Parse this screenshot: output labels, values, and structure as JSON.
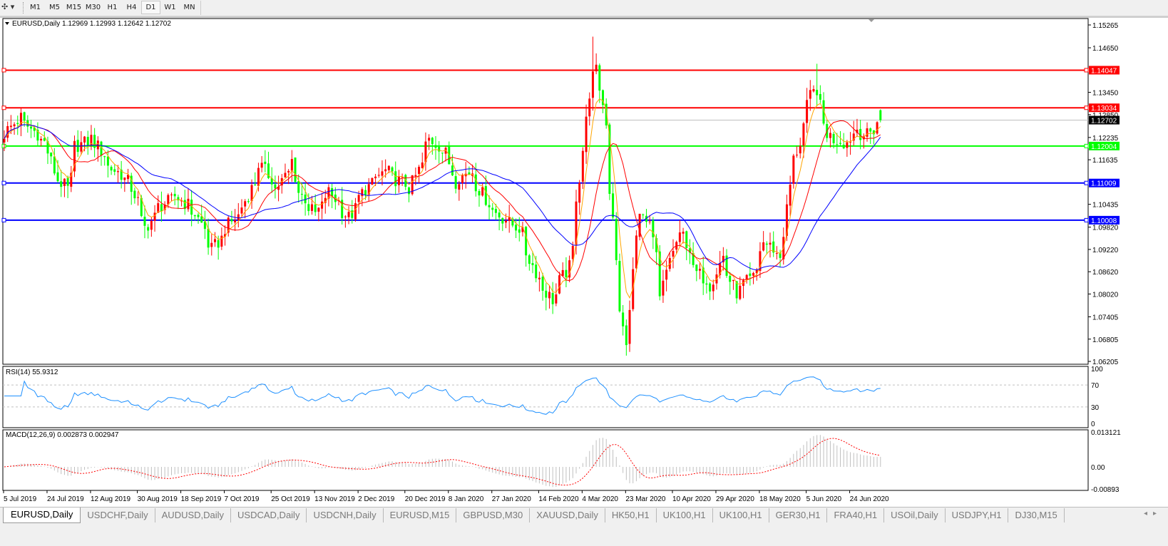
{
  "toolbar": {
    "tool_icon": "crosshair-pointer-icon",
    "timeframes": [
      "M1",
      "M5",
      "M15",
      "M30",
      "H1",
      "H4",
      "D1",
      "W1",
      "MN"
    ],
    "active_timeframe": "D1"
  },
  "chart": {
    "header": "EURUSD,Daily  1.12969 1.12993 1.12642 1.12702",
    "ohlc_last": {
      "open": 1.12969,
      "high": 1.12993,
      "low": 1.12642,
      "close": 1.12702
    },
    "bid": {
      "value": 1.12702,
      "label": "1.12702",
      "color": "#c0c0c0"
    },
    "price_ticks": [
      "1.15265",
      "1.14650",
      "1.13450",
      "1.12850",
      "1.12235",
      "1.11635",
      "1.10435",
      "1.09820",
      "1.09220",
      "1.08620",
      "1.08020",
      "1.07405",
      "1.06805",
      "1.06205"
    ],
    "levels": [
      {
        "value": 1.14047,
        "label": "1.14047",
        "color": "#ff0000"
      },
      {
        "value": 1.13034,
        "label": "1.13034",
        "color": "#ff0000"
      },
      {
        "value": 1.12004,
        "label": "1.12004",
        "color": "#00ff00"
      },
      {
        "value": 1.11009,
        "label": "1.11009",
        "color": "#0000ff"
      },
      {
        "value": 1.10008,
        "label": "1.10008",
        "color": "#0000ff"
      }
    ],
    "colors": {
      "up": "#ff0000",
      "down": "#00ff00",
      "ma_fast": "#ffa500",
      "ma_mid": "#ff0000",
      "ma_slow": "#0000ff",
      "rsi": "#1e90ff",
      "macd_hist": "#c0c0c0",
      "macd_signal": "#ff0000"
    },
    "date_ticks": [
      "5 Jul 2019",
      "24 Jul 2019",
      "12 Aug 2019",
      "30 Aug 2019",
      "18 Sep 2019",
      "7 Oct 2019",
      "25 Oct 2019",
      "13 Nov 2019",
      "2 Dec 2019",
      "20 Dec 2019",
      "8 Jan 2020",
      "27 Jan 2020",
      "14 Feb 2020",
      "4 Mar 2020",
      "23 Mar 2020",
      "10 Apr 2020",
      "29 Apr 2020",
      "18 May 2020",
      "5 Jun 2020",
      "24 Jun 2020"
    ]
  },
  "rsi": {
    "label": "RSI(14) 55.9312",
    "ticks": [
      "100",
      "70",
      "30",
      "0"
    ]
  },
  "macd": {
    "label": "MACD(12,26,9) 0.002873 0.002947",
    "ticks": [
      "0.013121",
      "0.00",
      "-0.00893"
    ]
  },
  "chart_data": {
    "type": "candlestick",
    "symbol": "EURUSD",
    "timeframe": "Daily",
    "ylim": [
      1.06205,
      1.15265
    ],
    "close_path": [
      [
        "2019-07-05",
        1.122
      ],
      [
        "2019-07-12",
        1.1277
      ],
      [
        "2019-07-23",
        1.121
      ],
      [
        "2019-07-26",
        1.1133
      ],
      [
        "2019-08-01",
        1.1085
      ],
      [
        "2019-08-05",
        1.12
      ],
      [
        "2019-08-12",
        1.122
      ],
      [
        "2019-08-19",
        1.1145
      ],
      [
        "2019-08-27",
        1.1105
      ],
      [
        "2019-09-03",
        1.098
      ],
      [
        "2019-09-09",
        1.1037
      ],
      [
        "2019-09-16",
        1.1066
      ],
      [
        "2019-09-24",
        1.1018
      ],
      [
        "2019-10-01",
        1.0922
      ],
      [
        "2019-10-07",
        1.098
      ],
      [
        "2019-10-14",
        1.1037
      ],
      [
        "2019-10-21",
        1.1152
      ],
      [
        "2019-10-28",
        1.1085
      ],
      [
        "2019-11-04",
        1.1161
      ],
      [
        "2019-11-06",
        1.1076
      ],
      [
        "2019-11-13",
        1.1018
      ],
      [
        "2019-11-19",
        1.1076
      ],
      [
        "2019-11-27",
        1.1008
      ],
      [
        "2019-12-04",
        1.1085
      ],
      [
        "2019-12-12",
        1.1133
      ],
      [
        "2019-12-23",
        1.1085
      ],
      [
        "2019-12-31",
        1.1219
      ],
      [
        "2020-01-07",
        1.118
      ],
      [
        "2020-01-10",
        1.1105
      ],
      [
        "2020-01-17",
        1.1133
      ],
      [
        "2020-01-24",
        1.1047
      ],
      [
        "2020-01-30",
        1.1008
      ],
      [
        "2020-02-06",
        1.098
      ],
      [
        "2020-02-14",
        1.0845
      ],
      [
        "2020-02-20",
        1.0787
      ],
      [
        "2020-02-27",
        1.0874
      ],
      [
        "2020-03-03",
        1.1114
      ],
      [
        "2020-03-06",
        1.1344
      ],
      [
        "2020-03-10",
        1.1402
      ],
      [
        "2020-03-13",
        1.1267
      ],
      [
        "2020-03-17",
        1.1018
      ],
      [
        "2020-03-19",
        1.0749
      ],
      [
        "2020-03-23",
        1.0653
      ],
      [
        "2020-03-25",
        1.0864
      ],
      [
        "2020-03-27",
        1.1037
      ],
      [
        "2020-04-01",
        1.098
      ],
      [
        "2020-04-06",
        1.0787
      ],
      [
        "2020-04-09",
        1.0903
      ],
      [
        "2020-04-15",
        1.0961
      ],
      [
        "2020-04-20",
        1.0864
      ],
      [
        "2020-04-27",
        1.0826
      ],
      [
        "2020-05-01",
        1.0903
      ],
      [
        "2020-05-07",
        1.0806
      ],
      [
        "2020-05-14",
        1.0845
      ],
      [
        "2020-05-19",
        1.0941
      ],
      [
        "2020-05-26",
        1.0903
      ],
      [
        "2020-05-29",
        1.1095
      ],
      [
        "2020-06-03",
        1.121
      ],
      [
        "2020-06-05",
        1.1306
      ],
      [
        "2020-06-10",
        1.1354
      ],
      [
        "2020-06-12",
        1.1258
      ],
      [
        "2020-06-17",
        1.1219
      ],
      [
        "2020-06-23",
        1.121
      ],
      [
        "2020-06-26",
        1.1248
      ],
      [
        "2020-07-01",
        1.1229
      ],
      [
        "2020-07-06",
        1.1267
      ],
      [
        "2020-07-07",
        1.12702
      ]
    ],
    "extremes": [
      [
        "2020-03-09",
        "high",
        1.1495
      ],
      [
        "2020-03-23",
        "low",
        1.0636
      ],
      [
        "2020-06-10",
        "high",
        1.1422
      ]
    ]
  },
  "tabs": [
    "EURUSD,Daily",
    "USDCHF,Daily",
    "AUDUSD,Daily",
    "USDCAD,Daily",
    "USDCNH,Daily",
    "EURUSD,M15",
    "GBPUSD,M30",
    "XAUUSD,Daily",
    "HK50,H1",
    "UK100,H1",
    "UK100,H1",
    "GER30,H1",
    "FRA40,H1",
    "USOil,Daily",
    "USDJPY,H1",
    "DJ30,M15"
  ],
  "active_tab": 0
}
